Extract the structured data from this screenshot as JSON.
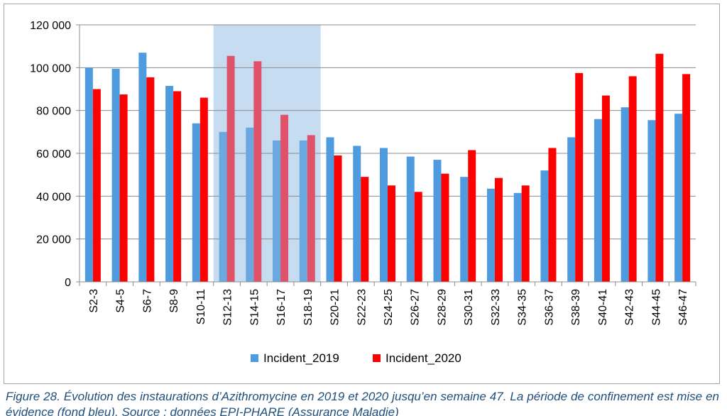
{
  "chart_data": {
    "type": "bar",
    "title": "",
    "xlabel": "",
    "ylabel": "",
    "ylim": [
      0,
      120000
    ],
    "yticks": [
      "0",
      "20 000",
      "40 000",
      "60 000",
      "80 000",
      "100 000",
      "120 000"
    ],
    "ytick_values": [
      0,
      20000,
      40000,
      60000,
      80000,
      100000,
      120000
    ],
    "grid": true,
    "legend_position": "bottom",
    "categories": [
      "S2-3",
      "S4-5",
      "S6-7",
      "S8-9",
      "S10-11",
      "S12-13",
      "S14-15",
      "S16-17",
      "S18-19",
      "S20-21",
      "S22-23",
      "S24-25",
      "S26-27",
      "S28-29",
      "S30-31",
      "S32-33",
      "S34-35",
      "S36-37",
      "S38-39",
      "S40-41",
      "S42-43",
      "S44-45",
      "S46-47"
    ],
    "series": [
      {
        "name": "Incident_2019",
        "color": "#4f9be0",
        "values": [
          100000,
          99500,
          107000,
          91500,
          74000,
          70000,
          72000,
          66000,
          66000,
          67500,
          63500,
          62500,
          58500,
          57000,
          49000,
          43500,
          41500,
          52000,
          67500,
          76000,
          81500,
          75500,
          78500
        ]
      },
      {
        "name": "Incident_2020",
        "color": "#ff0000",
        "values": [
          90000,
          87500,
          95500,
          89000,
          86000,
          105500,
          103000,
          78000,
          68500,
          59000,
          49000,
          45000,
          42000,
          50500,
          61500,
          48500,
          45000,
          62500,
          97500,
          87000,
          96000,
          106500,
          97000
        ]
      }
    ],
    "highlight": {
      "from_category": "S12-13",
      "to_category": "S18-19",
      "color": "#c5dcf1"
    }
  },
  "caption": "Figure 28. Évolution des instaurations d’Azithromycine en 2019 et 2020 jusqu’en semaine 47. La période de confinement est mise en évidence (fond bleu). Source : données EPI-PHARE (Assurance Maladie)"
}
